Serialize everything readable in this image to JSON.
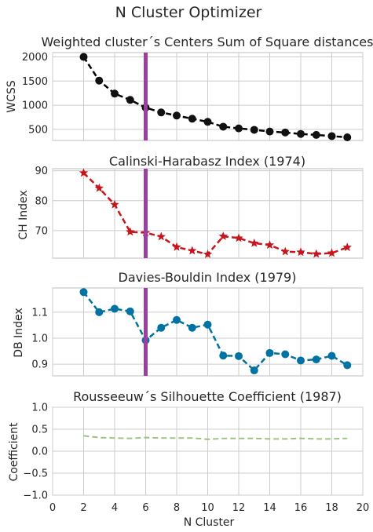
{
  "figure": {
    "suptitle": "N Cluster Optimizer"
  },
  "chart_data": [
    {
      "type": "line",
      "title": "Weighted cluster´s Centers Sum of Square distances",
      "ylabel": "WCSS",
      "x": [
        2,
        3,
        4,
        5,
        6,
        7,
        8,
        9,
        10,
        11,
        12,
        13,
        14,
        15,
        16,
        17,
        18,
        19
      ],
      "values": [
        2000,
        1510,
        1240,
        1110,
        950,
        850,
        785,
        720,
        655,
        555,
        520,
        490,
        455,
        435,
        405,
        385,
        360,
        335
      ],
      "xlim": [
        0,
        20
      ],
      "ylim": [
        270,
        2090
      ],
      "yticks": [
        500,
        1000,
        1500,
        2000
      ],
      "xticks": [
        0,
        2,
        4,
        6,
        8,
        10,
        12,
        14,
        16,
        18,
        20
      ],
      "show_xtick_labels": false,
      "marker": "circle",
      "line_color": "#000000",
      "marker_color": "#111111",
      "line_style": "dashed",
      "vline_x": 6,
      "vline_color": "#9b3fa0",
      "grid": true
    },
    {
      "type": "line",
      "title": "Calinski-Harabasz Index (1974)",
      "ylabel": "CH Index",
      "x": [
        2,
        3,
        4,
        5,
        6,
        7,
        8,
        9,
        10,
        11,
        12,
        13,
        14,
        15,
        16,
        17,
        18,
        19
      ],
      "values": [
        89.3,
        84.2,
        78.7,
        69.6,
        69.3,
        68.0,
        64.5,
        63.3,
        62.1,
        68.1,
        67.5,
        65.8,
        65.2,
        63.0,
        62.8,
        62.2,
        62.5,
        64.4
      ],
      "xlim": [
        0,
        20
      ],
      "ylim": [
        60.8,
        90.7
      ],
      "yticks": [
        70,
        80,
        90
      ],
      "xticks": [
        0,
        2,
        4,
        6,
        8,
        10,
        12,
        14,
        16,
        18,
        20
      ],
      "show_xtick_labels": false,
      "marker": "star",
      "line_color": "#c4161c",
      "marker_color": "#c4161c",
      "line_style": "dashed",
      "vline_x": 6,
      "vline_color": "#9b3fa0",
      "grid": true
    },
    {
      "type": "line",
      "title": "Davies-Bouldin Index (1979)",
      "ylabel": "DB Index",
      "x": [
        2,
        3,
        4,
        5,
        6,
        7,
        8,
        9,
        10,
        11,
        12,
        13,
        14,
        15,
        16,
        17,
        18,
        19
      ],
      "values": [
        1.177,
        1.1,
        1.113,
        1.103,
        0.992,
        1.04,
        1.07,
        1.04,
        1.052,
        0.933,
        0.931,
        0.876,
        0.943,
        0.938,
        0.914,
        0.918,
        0.932,
        0.896
      ],
      "xlim": [
        0,
        20
      ],
      "ylim": [
        0.855,
        1.193
      ],
      "yticks": [
        0.9,
        1.0,
        1.1
      ],
      "ytick_format": "fixed1",
      "xticks": [
        0,
        2,
        4,
        6,
        8,
        10,
        12,
        14,
        16,
        18,
        20
      ],
      "show_xtick_labels": false,
      "marker": "circle",
      "line_color": "#00729b",
      "marker_color": "#0072a3",
      "line_style": "dashed",
      "vline_x": 6,
      "vline_color": "#9b3fa0",
      "grid": true
    },
    {
      "type": "line",
      "title": "Rousseeuw´s Silhouette Coefficient (1987)",
      "ylabel": "Coefficient",
      "xlabel": "N Cluster",
      "x": [
        2,
        3,
        4,
        5,
        6,
        7,
        8,
        9,
        10,
        11,
        12,
        13,
        14,
        15,
        16,
        17,
        18,
        19
      ],
      "values": [
        0.35,
        0.31,
        0.3,
        0.29,
        0.31,
        0.3,
        0.3,
        0.3,
        0.27,
        0.29,
        0.29,
        0.29,
        0.28,
        0.28,
        0.29,
        0.28,
        0.28,
        0.29
      ],
      "xlim": [
        0,
        20
      ],
      "ylim": [
        -1.0,
        1.0
      ],
      "yticks": [
        -1.0,
        -0.5,
        0.0,
        0.5,
        1.0
      ],
      "ytick_format": "fixed1",
      "xticks": [
        0,
        2,
        4,
        6,
        8,
        10,
        12,
        14,
        16,
        18,
        20
      ],
      "show_xtick_labels": true,
      "marker": "none",
      "line_color": "#9cc47e",
      "line_style": "dashed",
      "grid": true
    }
  ]
}
